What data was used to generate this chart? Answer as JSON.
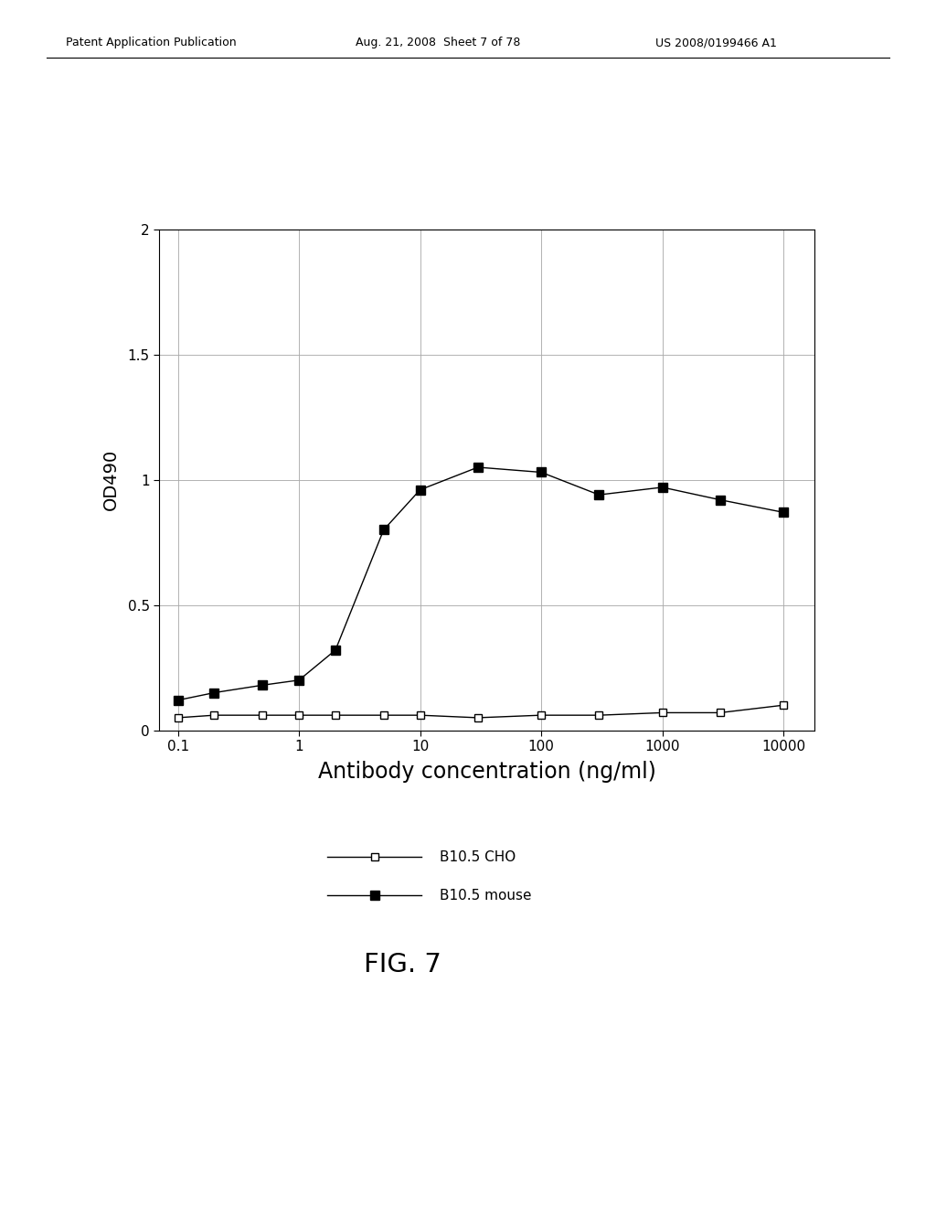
{
  "cho_x": [
    0.1,
    0.2,
    0.5,
    1.0,
    2.0,
    5.0,
    10.0,
    30.0,
    100.0,
    300.0,
    1000.0,
    3000.0,
    10000.0
  ],
  "cho_y": [
    0.05,
    0.06,
    0.06,
    0.06,
    0.06,
    0.06,
    0.06,
    0.05,
    0.06,
    0.06,
    0.07,
    0.07,
    0.1
  ],
  "mouse_x": [
    0.1,
    0.2,
    0.5,
    1.0,
    2.0,
    5.0,
    10.0,
    30.0,
    100.0,
    300.0,
    1000.0,
    3000.0,
    10000.0
  ],
  "mouse_y": [
    0.12,
    0.15,
    0.18,
    0.2,
    0.32,
    0.8,
    0.96,
    1.05,
    1.03,
    0.94,
    0.97,
    0.92,
    0.87
  ],
  "xlabel": "Antibody concentration (ng/ml)",
  "ylabel": "OD490",
  "ylim": [
    0,
    2.0
  ],
  "yticks": [
    0,
    0.5,
    1.0,
    1.5,
    2.0
  ],
  "ytick_labels": [
    "0",
    "0.5",
    "1",
    "1.5",
    "2"
  ],
  "xticks": [
    0.1,
    1,
    10,
    100,
    1000,
    10000
  ],
  "xtick_labels": [
    "0.1",
    "1",
    "10",
    "100",
    "1000",
    "10000"
  ],
  "legend_cho": "B10.5 CHO",
  "legend_mouse": "B10.5 mouse",
  "fig_label": "FIG. 7",
  "header_left": "Patent Application Publication",
  "header_center": "Aug. 21, 2008  Sheet 7 of 78",
  "header_right": "US 2008/0199466 A1",
  "background_color": "#ffffff",
  "line_color": "#555555"
}
